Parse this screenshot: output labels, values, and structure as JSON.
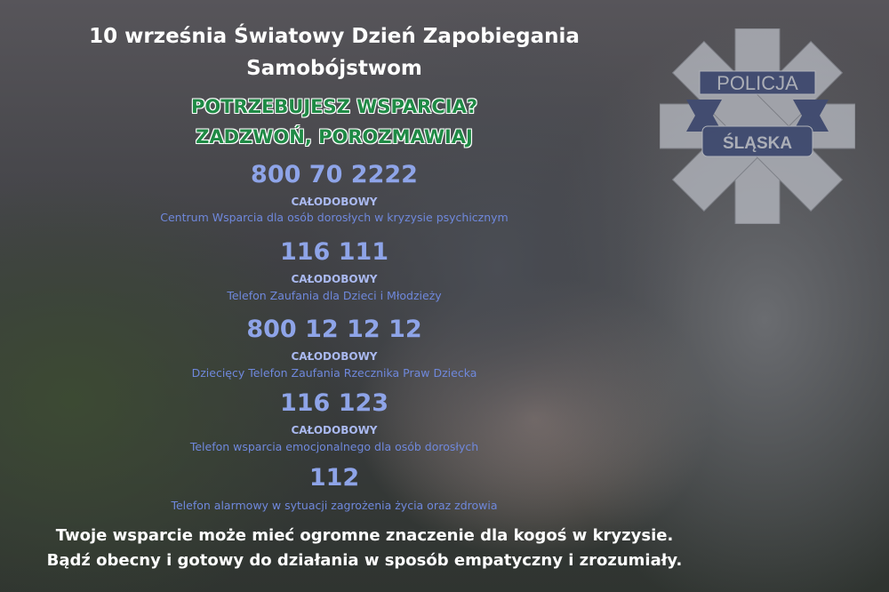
{
  "title": {
    "line1": "10 września Światowy Dzień Zapobiegania",
    "line2": "Samobójstwom"
  },
  "headline": {
    "line1": "POTRZEBUJESZ WSPARCIA?",
    "line2": "ZADZWOŃ, POROZMAWIAJ"
  },
  "hotlines": [
    {
      "number": "800 70 2222",
      "hours": "CAŁODOBOWY",
      "description": "Centrum Wsparcia dla osób dorosłych w kryzysie psychicznym"
    },
    {
      "number": "116 111",
      "hours": "CAŁODOBOWY",
      "description": "Telefon Zaufania dla Dzieci i Młodzieży"
    },
    {
      "number": "800 12 12 12",
      "hours": "CAŁODOBOWY",
      "description": "Dziecięcy Telefon Zaufania Rzecznika Praw Dziecka"
    },
    {
      "number": "116 123",
      "hours": "CAŁODOBOWY",
      "description": "Telefon wsparcia emocjonalnego dla osób dorosłych"
    },
    {
      "number": "112",
      "description": "Telefon alarmowy w sytuacji zagrożenia życia oraz zdrowia"
    }
  ],
  "footer": {
    "line1": "Twoje wsparcie może mieć ogromne znaczenie dla kogoś w kryzysie.",
    "line2": "Bądź obecny i gotowy do działania w sposób empatyczny i zrozumiały."
  },
  "logo": {
    "top_text": "POLICJA",
    "bottom_text": "ŚLĄSKA"
  },
  "colors": {
    "headline_green": "#1f8a45",
    "number_blue": "#8ea4e8",
    "description_blue": "#6f88dc"
  }
}
